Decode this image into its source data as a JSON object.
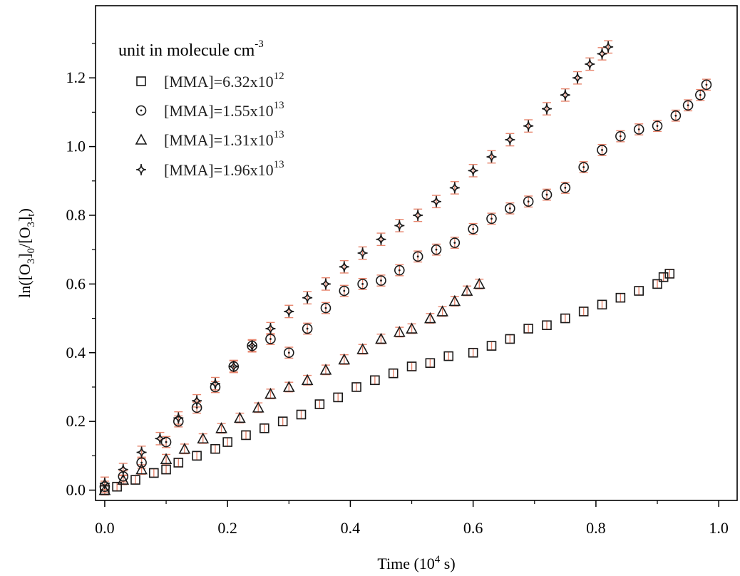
{
  "chart_data": {
    "type": "scatter",
    "title": "",
    "xlabel": {
      "main": "Time (10",
      "sup": "4",
      "end": " s)"
    },
    "ylabel": {
      "p1": "ln([O",
      "s1": "3",
      "p2": "]",
      "s2": "0",
      "p3": "/[O",
      "s3": "3",
      "p4": "]",
      "s4": "t",
      "p5": ")"
    },
    "xlim": [
      -0.015,
      1.03
    ],
    "ylim": [
      -0.03,
      1.41
    ],
    "x_ticks": [
      0.0,
      0.2,
      0.4,
      0.6,
      0.8,
      1.0
    ],
    "x_tick_labels": [
      "0.0",
      "0.2",
      "0.4",
      "0.6",
      "0.8",
      "1.0"
    ],
    "y_ticks": [
      0.0,
      0.2,
      0.4,
      0.6,
      0.8,
      1.0,
      1.2
    ],
    "y_tick_labels": [
      "0.0",
      "0.2",
      "0.4",
      "0.6",
      "0.8",
      "1.0",
      "1.2"
    ],
    "grid": false,
    "legend": {
      "title": "unit in molecule cm",
      "title_sup": "-3",
      "placement": "top-left"
    },
    "error_bar_color": "#e8866e",
    "marker_color": "#1a1a1a",
    "series": [
      {
        "name": "[MMA]=6.32x10",
        "name_sup": "12",
        "marker": "square",
        "err": 0.012,
        "points": [
          [
            0.0,
            0.0
          ],
          [
            0.02,
            0.01
          ],
          [
            0.05,
            0.03
          ],
          [
            0.08,
            0.05
          ],
          [
            0.1,
            0.06
          ],
          [
            0.12,
            0.08
          ],
          [
            0.15,
            0.1
          ],
          [
            0.18,
            0.12
          ],
          [
            0.2,
            0.14
          ],
          [
            0.23,
            0.16
          ],
          [
            0.26,
            0.18
          ],
          [
            0.29,
            0.2
          ],
          [
            0.32,
            0.22
          ],
          [
            0.35,
            0.25
          ],
          [
            0.38,
            0.27
          ],
          [
            0.41,
            0.3
          ],
          [
            0.44,
            0.32
          ],
          [
            0.47,
            0.34
          ],
          [
            0.5,
            0.36
          ],
          [
            0.53,
            0.37
          ],
          [
            0.56,
            0.39
          ],
          [
            0.6,
            0.4
          ],
          [
            0.63,
            0.42
          ],
          [
            0.66,
            0.44
          ],
          [
            0.69,
            0.47
          ],
          [
            0.72,
            0.48
          ],
          [
            0.75,
            0.5
          ],
          [
            0.78,
            0.52
          ],
          [
            0.81,
            0.54
          ],
          [
            0.84,
            0.56
          ],
          [
            0.87,
            0.58
          ],
          [
            0.9,
            0.6
          ],
          [
            0.91,
            0.62
          ],
          [
            0.92,
            0.63
          ]
        ]
      },
      {
        "name": "[MMA]=1.55x10",
        "name_sup": "13",
        "marker": "circle",
        "err": 0.016,
        "points": [
          [
            0.0,
            0.01
          ],
          [
            0.03,
            0.04
          ],
          [
            0.06,
            0.08
          ],
          [
            0.1,
            0.14
          ],
          [
            0.12,
            0.2
          ],
          [
            0.15,
            0.24
          ],
          [
            0.18,
            0.3
          ],
          [
            0.21,
            0.36
          ],
          [
            0.24,
            0.42
          ],
          [
            0.27,
            0.44
          ],
          [
            0.3,
            0.4
          ],
          [
            0.33,
            0.47
          ],
          [
            0.36,
            0.53
          ],
          [
            0.39,
            0.58
          ],
          [
            0.42,
            0.6
          ],
          [
            0.45,
            0.61
          ],
          [
            0.48,
            0.64
          ],
          [
            0.51,
            0.68
          ],
          [
            0.54,
            0.7
          ],
          [
            0.57,
            0.72
          ],
          [
            0.6,
            0.76
          ],
          [
            0.63,
            0.79
          ],
          [
            0.66,
            0.82
          ],
          [
            0.69,
            0.84
          ],
          [
            0.72,
            0.86
          ],
          [
            0.75,
            0.88
          ],
          [
            0.78,
            0.94
          ],
          [
            0.81,
            0.99
          ],
          [
            0.84,
            1.03
          ],
          [
            0.87,
            1.05
          ],
          [
            0.9,
            1.06
          ],
          [
            0.93,
            1.09
          ],
          [
            0.95,
            1.12
          ],
          [
            0.97,
            1.15
          ],
          [
            0.98,
            1.18
          ]
        ]
      },
      {
        "name": "[MMA]=1.31x10",
        "name_sup": "13",
        "marker": "triangle",
        "err": 0.014,
        "points": [
          [
            0.0,
            0.0
          ],
          [
            0.03,
            0.03
          ],
          [
            0.06,
            0.06
          ],
          [
            0.1,
            0.09
          ],
          [
            0.13,
            0.12
          ],
          [
            0.16,
            0.15
          ],
          [
            0.19,
            0.18
          ],
          [
            0.22,
            0.21
          ],
          [
            0.25,
            0.24
          ],
          [
            0.27,
            0.28
          ],
          [
            0.3,
            0.3
          ],
          [
            0.33,
            0.32
          ],
          [
            0.36,
            0.35
          ],
          [
            0.39,
            0.38
          ],
          [
            0.42,
            0.41
          ],
          [
            0.45,
            0.44
          ],
          [
            0.48,
            0.46
          ],
          [
            0.5,
            0.47
          ],
          [
            0.53,
            0.5
          ],
          [
            0.55,
            0.52
          ],
          [
            0.57,
            0.55
          ],
          [
            0.59,
            0.58
          ],
          [
            0.61,
            0.6
          ]
        ]
      },
      {
        "name": "[MMA]=1.96x10",
        "name_sup": "13",
        "marker": "star",
        "err": 0.018,
        "points": [
          [
            0.0,
            0.02
          ],
          [
            0.03,
            0.06
          ],
          [
            0.06,
            0.11
          ],
          [
            0.09,
            0.15
          ],
          [
            0.12,
            0.21
          ],
          [
            0.15,
            0.26
          ],
          [
            0.18,
            0.31
          ],
          [
            0.21,
            0.36
          ],
          [
            0.24,
            0.42
          ],
          [
            0.27,
            0.47
          ],
          [
            0.3,
            0.52
          ],
          [
            0.33,
            0.56
          ],
          [
            0.36,
            0.6
          ],
          [
            0.39,
            0.65
          ],
          [
            0.42,
            0.69
          ],
          [
            0.45,
            0.73
          ],
          [
            0.48,
            0.77
          ],
          [
            0.51,
            0.8
          ],
          [
            0.54,
            0.84
          ],
          [
            0.57,
            0.88
          ],
          [
            0.6,
            0.93
          ],
          [
            0.63,
            0.97
          ],
          [
            0.66,
            1.02
          ],
          [
            0.69,
            1.06
          ],
          [
            0.72,
            1.11
          ],
          [
            0.75,
            1.15
          ],
          [
            0.77,
            1.2
          ],
          [
            0.79,
            1.24
          ],
          [
            0.81,
            1.27
          ],
          [
            0.82,
            1.29
          ]
        ]
      }
    ]
  }
}
